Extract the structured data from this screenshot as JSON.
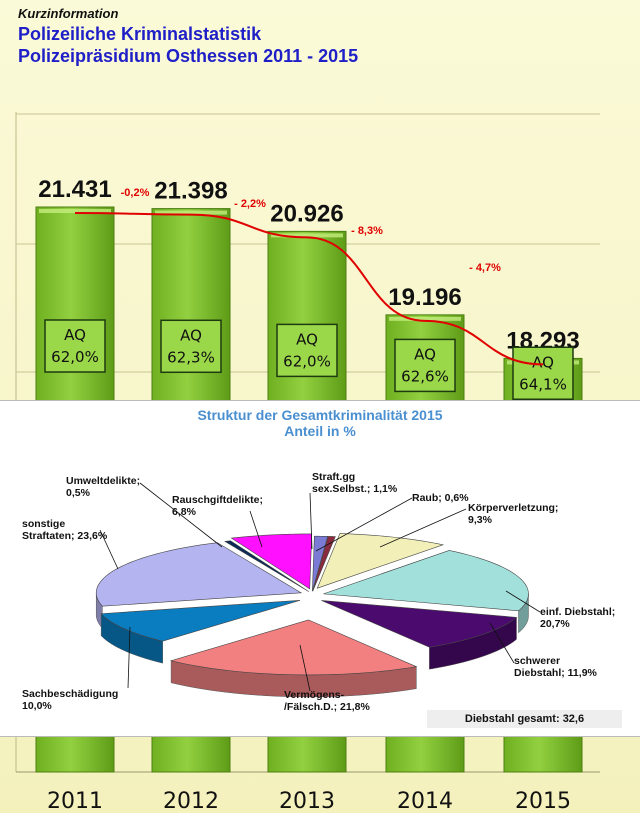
{
  "header": {
    "kicker": "Kurzinformation",
    "title_line1": "Polizeiliche Kriminalstatistik",
    "title_line2": "Polizeipräsidium Osthessen 2011 - 2015"
  },
  "chart_data": [
    {
      "type": "bar",
      "categories": [
        "2011",
        "2012",
        "2013",
        "2014",
        "2015"
      ],
      "values": [
        21431,
        21398,
        20926,
        19196,
        18293
      ],
      "value_labels": [
        "21.431",
        "21.398",
        "20.926",
        "19.196",
        "18.293"
      ],
      "aq_label": "AQ",
      "aq_values": [
        "62,0%",
        "62,3%",
        "62,0%",
        "62,6%",
        "64,1%"
      ],
      "changes": [
        "-0,2%",
        "- 2,2%",
        "- 8,3%",
        "- 4,7%"
      ],
      "trendline": true,
      "grid": true,
      "colors": {
        "bar": "#92d040",
        "trend": "#e00000",
        "change": "#e00000"
      }
    },
    {
      "type": "pie",
      "title": "Struktur der Gesamtkriminalität 2015",
      "subtitle": "Anteil in %",
      "slices": [
        {
          "label": "Straft.gg sex.Selbst.",
          "value": 1.1,
          "text": "Straft.gg\nsex.Selbst.; 1,1%",
          "color": "#7b7bd6"
        },
        {
          "label": "Raub",
          "value": 0.6,
          "text": "Raub; 0,6%",
          "color": "#8a2a3e"
        },
        {
          "label": "Körperverletzung",
          "value": 9.3,
          "text": "Körperverletzung;\n9,3%",
          "color": "#f2f0b8"
        },
        {
          "label": "einf. Diebstahl",
          "value": 20.7,
          "text": "einf. Diebstahl;\n20,7%",
          "color": "#a2e0dc"
        },
        {
          "label": "schwerer Diebstahl",
          "value": 11.9,
          "text": "schwerer\nDiebstahl; 11,9%",
          "color": "#4a0a6e"
        },
        {
          "label": "Vermögens-/Fälsch.D.",
          "value": 21.8,
          "text": "Vermögens-\n/Fälsch.D.; 21,8%",
          "color": "#f28080"
        },
        {
          "label": "Sachbeschädigung",
          "value": 10.0,
          "text": "Sachbeschädigung\n10,0%",
          "color": "#0a7cc0"
        },
        {
          "label": "sonstige Straftaten",
          "value": 23.6,
          "text": "sonstige\nStraftaten; 23,6%",
          "color": "#b4b4f0"
        },
        {
          "label": "Umweltdelikte",
          "value": 0.5,
          "text": "Umweltdelikte;\n0,5%",
          "color": "#0a2a5a"
        },
        {
          "label": "Rauschgiftdelikte",
          "value": 6.8,
          "text": "Rauschgiftdelikte;\n6,8%",
          "color": "#ff10ff"
        }
      ],
      "total_note": "Diebstahl gesamt: 32,6"
    }
  ]
}
